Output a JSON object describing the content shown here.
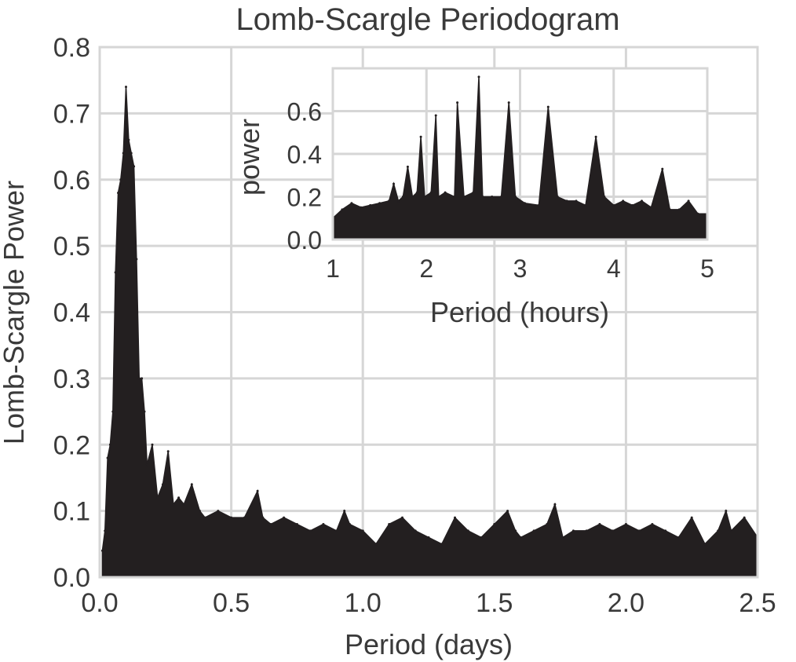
{
  "chart_data": [
    {
      "type": "area",
      "title": "Lomb-Scargle Periodogram",
      "xlabel": "Period (days)",
      "ylabel": "Lomb-Scargle Power",
      "xlim": [
        0.0,
        2.5
      ],
      "ylim": [
        0.0,
        0.8
      ],
      "grid": true,
      "x_tick_labels": [
        "0.0",
        "0.5",
        "1.0",
        "1.5",
        "2.0",
        "2.5"
      ],
      "y_tick_labels": [
        "0.0",
        "0.1",
        "0.2",
        "0.3",
        "0.4",
        "0.5",
        "0.6",
        "0.7",
        "0.8"
      ],
      "color": "#231f20",
      "series": [
        {
          "x": [
            0.01,
            0.02,
            0.03,
            0.04,
            0.05,
            0.06,
            0.07,
            0.08,
            0.09,
            0.1,
            0.11,
            0.12,
            0.13,
            0.14,
            0.15,
            0.16,
            0.17,
            0.18,
            0.2,
            0.22,
            0.24,
            0.26,
            0.28,
            0.3,
            0.32,
            0.35,
            0.38,
            0.4,
            0.45,
            0.5,
            0.55,
            0.6,
            0.62,
            0.65,
            0.7,
            0.75,
            0.8,
            0.85,
            0.9,
            0.93,
            0.95,
            1.0,
            1.05,
            1.1,
            1.15,
            1.2,
            1.25,
            1.3,
            1.35,
            1.4,
            1.45,
            1.5,
            1.55,
            1.58,
            1.6,
            1.65,
            1.7,
            1.73,
            1.76,
            1.8,
            1.85,
            1.9,
            1.95,
            2.0,
            2.05,
            2.1,
            2.15,
            2.2,
            2.25,
            2.3,
            2.35,
            2.38,
            2.4,
            2.45,
            2.5
          ],
          "y": [
            0.04,
            0.07,
            0.18,
            0.2,
            0.25,
            0.46,
            0.58,
            0.6,
            0.64,
            0.74,
            0.66,
            0.64,
            0.62,
            0.48,
            0.3,
            0.3,
            0.25,
            0.17,
            0.2,
            0.12,
            0.14,
            0.19,
            0.11,
            0.12,
            0.11,
            0.14,
            0.1,
            0.09,
            0.1,
            0.09,
            0.09,
            0.13,
            0.09,
            0.08,
            0.09,
            0.08,
            0.07,
            0.08,
            0.07,
            0.1,
            0.08,
            0.07,
            0.05,
            0.08,
            0.09,
            0.07,
            0.06,
            0.05,
            0.09,
            0.07,
            0.06,
            0.08,
            0.1,
            0.07,
            0.06,
            0.07,
            0.08,
            0.11,
            0.06,
            0.07,
            0.07,
            0.08,
            0.07,
            0.08,
            0.07,
            0.08,
            0.07,
            0.06,
            0.09,
            0.05,
            0.07,
            0.1,
            0.07,
            0.09,
            0.06
          ]
        }
      ]
    },
    {
      "type": "area",
      "inset": true,
      "xlabel": "Period (hours)",
      "ylabel": "power",
      "xlim": [
        1,
        5
      ],
      "ylim": [
        0.0,
        0.8
      ],
      "grid": true,
      "x_tick_labels": [
        "1",
        "2",
        "3",
        "4",
        "5"
      ],
      "y_tick_labels": [
        "0.0",
        "0.2",
        "0.4",
        "0.6"
      ],
      "color": "#231f20",
      "series": [
        {
          "x": [
            1.0,
            1.1,
            1.2,
            1.3,
            1.4,
            1.5,
            1.6,
            1.65,
            1.7,
            1.75,
            1.8,
            1.85,
            1.9,
            1.94,
            1.98,
            2.05,
            2.1,
            2.13,
            2.2,
            2.3,
            2.33,
            2.4,
            2.5,
            2.56,
            2.6,
            2.7,
            2.8,
            2.88,
            2.95,
            3.05,
            3.2,
            3.3,
            3.4,
            3.5,
            3.6,
            3.7,
            3.81,
            3.9,
            4.0,
            4.1,
            4.2,
            4.3,
            4.4,
            4.52,
            4.6,
            4.7,
            4.8,
            4.9,
            5.0
          ],
          "y": [
            0.1,
            0.14,
            0.17,
            0.15,
            0.16,
            0.17,
            0.18,
            0.26,
            0.18,
            0.2,
            0.34,
            0.2,
            0.22,
            0.48,
            0.2,
            0.22,
            0.58,
            0.2,
            0.22,
            0.2,
            0.64,
            0.2,
            0.22,
            0.76,
            0.2,
            0.2,
            0.2,
            0.64,
            0.2,
            0.17,
            0.16,
            0.62,
            0.2,
            0.18,
            0.18,
            0.16,
            0.48,
            0.2,
            0.16,
            0.18,
            0.16,
            0.18,
            0.15,
            0.33,
            0.14,
            0.14,
            0.18,
            0.12,
            0.12
          ]
        }
      ]
    }
  ]
}
